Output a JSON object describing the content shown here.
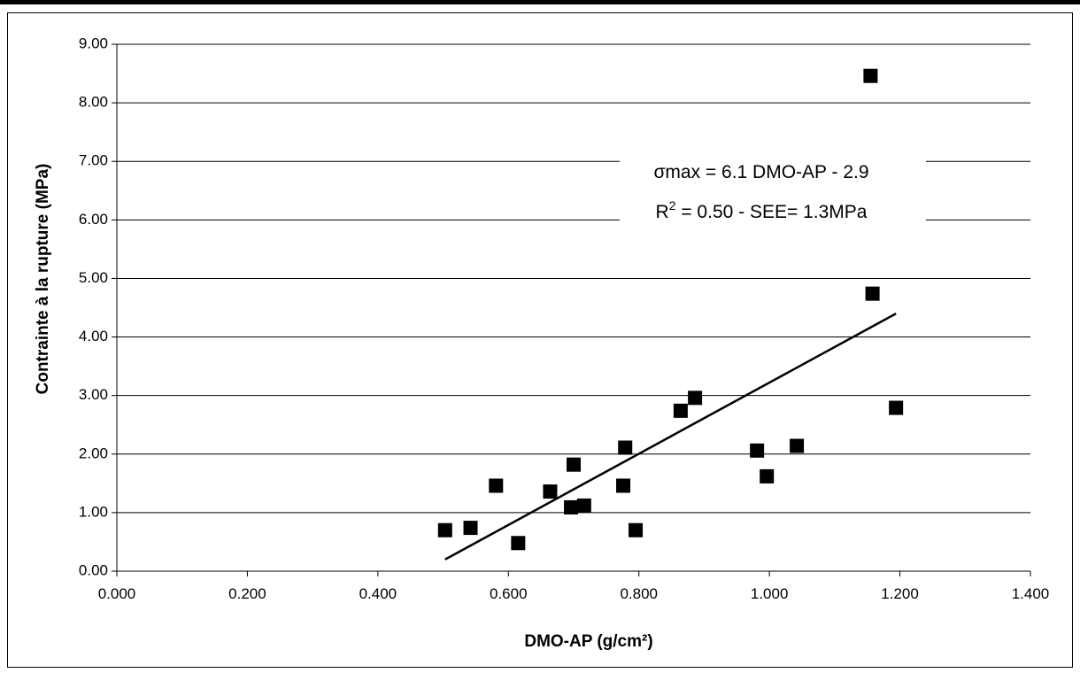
{
  "chart_data": {
    "type": "scatter",
    "xlabel": "DMO-AP (g/cm²)",
    "ylabel": "Contrainte à la rupture (MPa)",
    "xlim": [
      0,
      1.4
    ],
    "ylim": [
      0,
      9
    ],
    "x_ticks": [
      "0.000",
      "0.200",
      "0.400",
      "0.600",
      "0.800",
      "1.000",
      "1.200",
      "1.400"
    ],
    "y_ticks": [
      "0.00",
      "1.00",
      "2.00",
      "3.00",
      "4.00",
      "5.00",
      "6.00",
      "7.00",
      "8.00",
      "9.00"
    ],
    "grid": "horizontal",
    "marker": "square",
    "marker_color": "#000000",
    "points": [
      {
        "x": 0.503,
        "y": 0.7
      },
      {
        "x": 0.542,
        "y": 0.74
      },
      {
        "x": 0.581,
        "y": 1.46
      },
      {
        "x": 0.615,
        "y": 0.48
      },
      {
        "x": 0.664,
        "y": 1.36
      },
      {
        "x": 0.696,
        "y": 1.09
      },
      {
        "x": 0.7,
        "y": 1.82
      },
      {
        "x": 0.716,
        "y": 1.12
      },
      {
        "x": 0.776,
        "y": 1.46
      },
      {
        "x": 0.779,
        "y": 2.11
      },
      {
        "x": 0.795,
        "y": 0.7
      },
      {
        "x": 0.864,
        "y": 2.74
      },
      {
        "x": 0.886,
        "y": 2.96
      },
      {
        "x": 0.981,
        "y": 2.06
      },
      {
        "x": 0.996,
        "y": 1.62
      },
      {
        "x": 1.042,
        "y": 2.14
      },
      {
        "x": 1.155,
        "y": 8.46
      },
      {
        "x": 1.158,
        "y": 4.74
      },
      {
        "x": 1.194,
        "y": 2.79
      }
    ],
    "trendline": {
      "x": [
        0.503,
        1.194
      ],
      "y": [
        0.2,
        4.4
      ]
    },
    "annotation": {
      "line1": "σmax = 6.1 DMO-AP - 2.9",
      "line2_prefix": "R",
      "line2_sup": "2",
      "line2_rest": " = 0.50 - SEE= 1.3MPa"
    }
  }
}
